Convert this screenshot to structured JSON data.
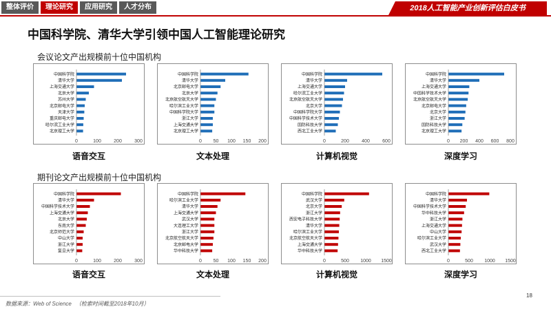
{
  "nav": {
    "tabs": [
      "整体评价",
      "理论研究",
      "应用研究",
      "人才分布"
    ],
    "active": 1
  },
  "header": {
    "brand": "2018人工智能产业创新评估白皮书"
  },
  "page_title": "中国科学院、清华大学引领中国人工智能理论研究",
  "sections": {
    "conference": "会议论文产出规模前十位中国机构",
    "journal": "期刊论文产出规模前十位中国机构"
  },
  "colors": {
    "conference": "#1f6eb8",
    "journal": "#c00000",
    "accent": "#c00000"
  },
  "chart_data": [
    {
      "type": "bar",
      "orientation": "horizontal",
      "group": "conference",
      "label": "语音交互",
      "categories": [
        "中国科学院",
        "清华大学",
        "上海交通大学",
        "北京大学",
        "苏州大学",
        "北京邮电大学",
        "天津大学",
        "重庆邮电大学",
        "哈尔滨工业大学",
        "北京理工大学"
      ],
      "values": [
        240,
        220,
        85,
        60,
        45,
        40,
        38,
        35,
        33,
        32
      ],
      "xlim": [
        0,
        300
      ],
      "xticks": [
        0,
        100,
        200,
        300
      ]
    },
    {
      "type": "bar",
      "orientation": "horizontal",
      "group": "conference",
      "label": "文本处理",
      "categories": [
        "中国科学院",
        "清华大学",
        "北京邮电大学",
        "北京大学",
        "北京航空航天大学",
        "哈尔滨工业大学",
        "中国科学院大学",
        "浙江大学",
        "上海交通大学",
        "北京理工大学"
      ],
      "values": [
        155,
        80,
        65,
        55,
        50,
        45,
        45,
        40,
        40,
        38
      ],
      "xlim": [
        0,
        200
      ],
      "xticks": [
        0,
        50,
        100,
        150,
        200
      ]
    },
    {
      "type": "bar",
      "orientation": "horizontal",
      "group": "conference",
      "label": "计算机视觉",
      "categories": [
        "中国科学院",
        "清华大学",
        "上海交通大学",
        "哈尔滨工业大学",
        "北京航空航天大学",
        "北京大学",
        "中国科学院大学",
        "中国科学技术大学",
        "国防科技大学",
        "西北工业大学"
      ],
      "values": [
        560,
        220,
        200,
        190,
        180,
        170,
        150,
        140,
        130,
        110
      ],
      "xlim": [
        0,
        600
      ],
      "xticks": [
        0,
        200,
        400,
        600
      ]
    },
    {
      "type": "bar",
      "orientation": "horizontal",
      "group": "conference",
      "label": "深度学习",
      "categories": [
        "中国科学院",
        "清华大学",
        "上海交通大学",
        "中国科学技术大学",
        "北京航空航天大学",
        "北京邮电大学",
        "北京大学",
        "浙江大学",
        "国防科技大学",
        "北京理工大学"
      ],
      "values": [
        720,
        400,
        270,
        260,
        250,
        230,
        220,
        210,
        180,
        170
      ],
      "xlim": [
        0,
        800
      ],
      "xticks": [
        0,
        200,
        400,
        600,
        800
      ]
    },
    {
      "type": "bar",
      "orientation": "horizontal",
      "group": "journal",
      "label": "语音交互",
      "categories": [
        "中国科学院",
        "清华大学",
        "中国科学技术大学",
        "上海交通大学",
        "北京大学",
        "东南大学",
        "北京师范大学",
        "中山大学",
        "浙江大学",
        "复旦大学"
      ],
      "values": [
        215,
        85,
        65,
        55,
        50,
        45,
        35,
        30,
        30,
        28
      ],
      "xlim": [
        0,
        300
      ],
      "xticks": [
        0,
        100,
        200,
        300
      ]
    },
    {
      "type": "bar",
      "orientation": "horizontal",
      "group": "journal",
      "label": "文本处理",
      "categories": [
        "中国科学院",
        "哈尔滨工业大学",
        "清华大学",
        "上海交通大学",
        "武汉大学",
        "大连理工大学",
        "浙江大学",
        "北京航空航天大学",
        "北京邮电大学",
        "华中科技大学"
      ],
      "values": [
        145,
        65,
        55,
        50,
        45,
        45,
        45,
        42,
        40,
        38
      ],
      "xlim": [
        0,
        200
      ],
      "xticks": [
        0,
        50,
        100,
        150,
        200
      ]
    },
    {
      "type": "bar",
      "orientation": "horizontal",
      "group": "journal",
      "label": "计算机视觉",
      "categories": [
        "中国科学院",
        "武汉大学",
        "北京大学",
        "浙江大学",
        "西安电子科技大学",
        "清华大学",
        "哈尔滨工业大学",
        "北京航空航天大学",
        "上海交通大学",
        "华中科技大学"
      ],
      "values": [
        1080,
        480,
        420,
        380,
        370,
        360,
        350,
        340,
        330,
        320
      ],
      "xlim": [
        0,
        1500
      ],
      "xticks": [
        0,
        500,
        1000,
        1500
      ]
    },
    {
      "type": "bar",
      "orientation": "horizontal",
      "group": "journal",
      "label": "深度学习",
      "categories": [
        "中国科学院",
        "清华大学",
        "中国科学技术大学",
        "华中科技大学",
        "浙江大学",
        "上海交通大学",
        "中山大学",
        "哈尔滨工业大学",
        "武汉大学",
        "西北工业大学"
      ],
      "values": [
        990,
        450,
        420,
        380,
        340,
        330,
        320,
        300,
        290,
        280
      ],
      "xlim": [
        0,
        1500
      ],
      "xticks": [
        0,
        500,
        1000,
        1500
      ]
    }
  ],
  "footer": {
    "source": "数据来源：Web of Science",
    "note": "（检索时间截至2018年10月）",
    "page": "18"
  }
}
